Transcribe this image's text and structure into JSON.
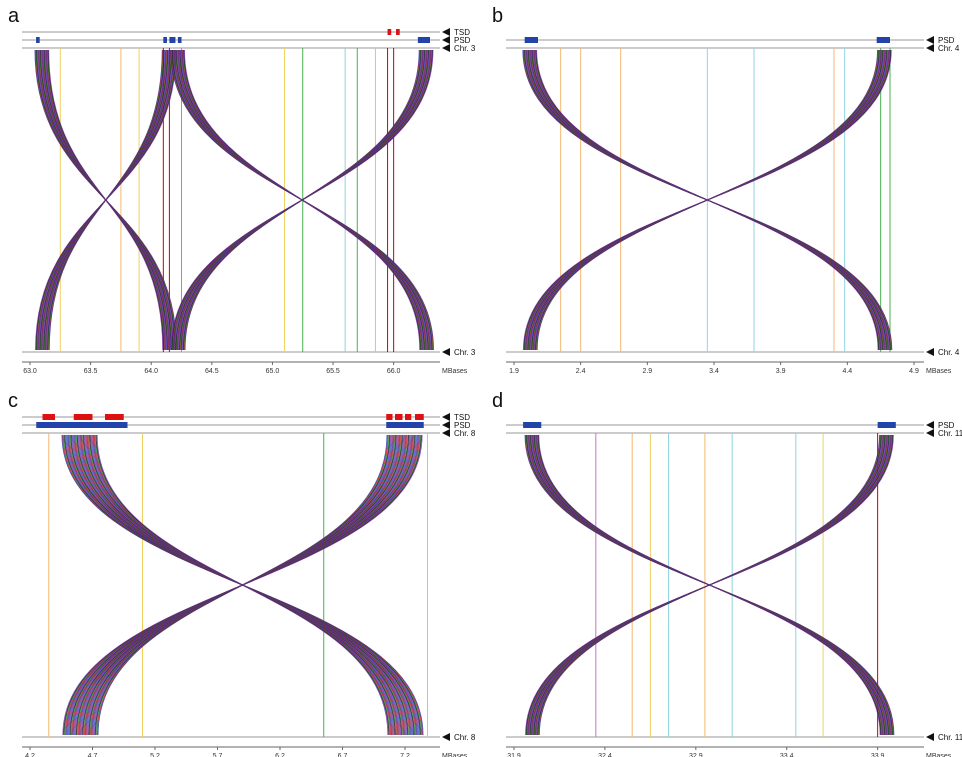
{
  "panels": [
    {
      "id": "a",
      "panel_label": "a",
      "top_tracks": [
        "TSD",
        "PSD",
        "Chr. 3"
      ],
      "bottom_track": "Chr. 3",
      "axis_unit": "MBases",
      "x_range": [
        63.0,
        66.3
      ],
      "ticks": [
        "63.0",
        "63.5",
        "64.0",
        "64.5",
        "65.0",
        "65.5",
        "66.0"
      ],
      "tsd_blocks": [
        [
          65.95,
          65.98
        ],
        [
          66.02,
          66.05
        ]
      ],
      "psd_blocks": [
        [
          63.05,
          63.08
        ],
        [
          64.1,
          64.13
        ],
        [
          64.15,
          64.2
        ],
        [
          64.22,
          64.25
        ],
        [
          66.2,
          66.3
        ]
      ],
      "inversion_cross": {
        "left_center": 63.1,
        "right_center": 64.15
      },
      "inversion_cross_2": {
        "left_center": 64.22,
        "right_center": 66.27
      },
      "vertical_lines": [
        {
          "x": 64.1,
          "color": "#cc0000"
        },
        {
          "x": 64.15,
          "color": "#cc0000"
        },
        {
          "x": 64.25,
          "color": "#d070d0"
        },
        {
          "x": 65.25,
          "color": "#4caf50"
        },
        {
          "x": 65.6,
          "color": "#8fd3e0"
        },
        {
          "x": 65.7,
          "color": "#4caf50"
        },
        {
          "x": 65.95,
          "color": "#cc0000"
        },
        {
          "x": 66.0,
          "color": "#cc0000"
        },
        {
          "x": 63.25,
          "color": "#f0d060"
        },
        {
          "x": 63.75,
          "color": "#f5b870"
        },
        {
          "x": 63.9,
          "color": "#f0d060"
        },
        {
          "x": 65.1,
          "color": "#f0d060"
        },
        {
          "x": 65.85,
          "color": "#f5b870"
        }
      ],
      "colors": {
        "psd": "#2244aa",
        "tsd": "#dd1111"
      }
    },
    {
      "id": "b",
      "panel_label": "b",
      "top_tracks": [
        "PSD",
        "Chr. 4"
      ],
      "bottom_track": "Chr. 4",
      "axis_unit": "MBases",
      "x_range": [
        1.9,
        4.9
      ],
      "ticks": [
        "1.9",
        "2.4",
        "2.9",
        "3.4",
        "3.9",
        "4.4",
        "4.9"
      ],
      "tsd_blocks": [],
      "psd_blocks": [
        [
          1.98,
          2.08
        ],
        [
          4.62,
          4.72
        ]
      ],
      "inversion_cross": {
        "left_center": 2.02,
        "right_center": 4.68
      },
      "inversion_cross_2": null,
      "vertical_lines": [
        {
          "x": 2.25,
          "color": "#f5b870"
        },
        {
          "x": 2.4,
          "color": "#f5b870"
        },
        {
          "x": 2.7,
          "color": "#f5b870"
        },
        {
          "x": 3.35,
          "color": "#8fd3e0"
        },
        {
          "x": 3.7,
          "color": "#8fd3e0"
        },
        {
          "x": 4.3,
          "color": "#f5b870"
        },
        {
          "x": 4.38,
          "color": "#8fd3e0"
        },
        {
          "x": 4.65,
          "color": "#4caf50"
        },
        {
          "x": 4.72,
          "color": "#4caf50"
        }
      ],
      "colors": {
        "psd": "#2244aa",
        "tsd": "#dd1111"
      }
    },
    {
      "id": "c",
      "panel_label": "c",
      "top_tracks": [
        "TSD",
        "PSD",
        "Chr. 8"
      ],
      "bottom_track": "Chr. 8",
      "axis_unit": "MBases",
      "x_range": [
        4.2,
        7.4
      ],
      "ticks": [
        "4.2",
        "4.7",
        "5.2",
        "5.7",
        "6.2",
        "6.7",
        "7.2"
      ],
      "tsd_blocks": [
        [
          4.3,
          4.4
        ],
        [
          4.55,
          4.7
        ],
        [
          4.8,
          4.95
        ],
        [
          7.05,
          7.1
        ],
        [
          7.12,
          7.18
        ],
        [
          7.2,
          7.25
        ],
        [
          7.28,
          7.35
        ]
      ],
      "psd_blocks": [
        [
          4.25,
          4.98
        ],
        [
          7.05,
          7.35
        ]
      ],
      "inversion_cross": {
        "left_center": 4.6,
        "right_center": 7.2
      },
      "inversion_cross_2": null,
      "vertical_lines": [
        {
          "x": 5.1,
          "color": "#f0d060"
        },
        {
          "x": 6.55,
          "color": "#4caf50"
        },
        {
          "x": 4.35,
          "color": "#f5b870"
        },
        {
          "x": 7.38,
          "color": "#f5b870"
        }
      ],
      "colors": {
        "psd": "#2244aa",
        "tsd": "#dd1111"
      }
    },
    {
      "id": "d",
      "panel_label": "d",
      "top_tracks": [
        "PSD",
        "Chr. 11"
      ],
      "bottom_track": "Chr. 11",
      "axis_unit": "MBases",
      "x_range": [
        31.9,
        34.1
      ],
      "ticks": [
        "31.9",
        "32.4",
        "32.9",
        "33.4",
        "33.9"
      ],
      "tsd_blocks": [],
      "psd_blocks": [
        [
          31.95,
          32.05
        ],
        [
          33.9,
          34.0
        ]
      ],
      "inversion_cross": {
        "left_center": 32.0,
        "right_center": 33.95
      },
      "inversion_cross_2": null,
      "vertical_lines": [
        {
          "x": 32.35,
          "color": "#d070d0"
        },
        {
          "x": 32.55,
          "color": "#f5b870"
        },
        {
          "x": 32.65,
          "color": "#f0d060"
        },
        {
          "x": 32.75,
          "color": "#8fd3e0"
        },
        {
          "x": 32.95,
          "color": "#f5b870"
        },
        {
          "x": 33.1,
          "color": "#8fd3e0"
        },
        {
          "x": 33.45,
          "color": "#8fd3e0"
        },
        {
          "x": 33.6,
          "color": "#f0d060"
        },
        {
          "x": 33.9,
          "color": "#cc0000"
        }
      ],
      "colors": {
        "psd": "#2244aa",
        "tsd": "#dd1111"
      }
    }
  ]
}
